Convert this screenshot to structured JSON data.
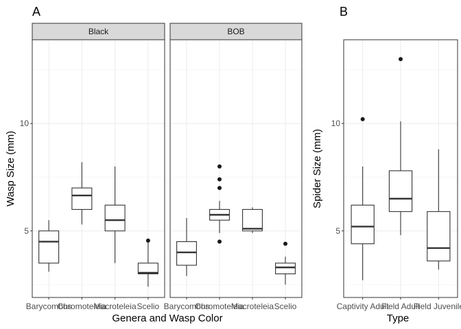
{
  "panels": [
    {
      "tag": "A"
    },
    {
      "tag": "B"
    }
  ],
  "chart_data": [
    {
      "type": "boxplot",
      "panel": "A",
      "xlabel": "Genera and Wasp Color",
      "ylabel": "Wasp Size (mm)",
      "ylim": [
        1.9,
        13.9
      ],
      "yticks": [
        5,
        10
      ],
      "grid": true,
      "facets": [
        {
          "label": "Black",
          "categories": [
            "Barycombus",
            "Chromoteleia",
            "Macroteleia",
            "Scelio"
          ],
          "boxes": [
            {
              "min": 3.1,
              "q1": 3.5,
              "median": 4.5,
              "q3": 5.0,
              "max": 5.5,
              "outliers": []
            },
            {
              "min": 5.3,
              "q1": 6.0,
              "median": 6.65,
              "q3": 7.0,
              "max": 8.2,
              "outliers": []
            },
            {
              "min": 3.5,
              "q1": 5.0,
              "median": 5.5,
              "q3": 6.2,
              "max": 8.0,
              "outliers": []
            },
            {
              "min": 2.4,
              "q1": 3.0,
              "median": 3.05,
              "q3": 3.5,
              "max": 4.5,
              "outliers": [
                4.55
              ]
            }
          ]
        },
        {
          "label": "BOB",
          "categories": [
            "Barycombus",
            "Chromoteleia",
            "Macroteleia",
            "Scelio"
          ],
          "boxes": [
            {
              "min": 2.9,
              "q1": 3.4,
              "median": 4.0,
              "q3": 4.5,
              "max": 5.6,
              "outliers": []
            },
            {
              "min": 4.9,
              "q1": 5.5,
              "median": 5.75,
              "q3": 6.0,
              "max": 6.4,
              "outliers": [
                8.0,
                7.4,
                7.0,
                4.5
              ]
            },
            {
              "min": 4.9,
              "q1": 5.0,
              "median": 5.1,
              "q3": 6.0,
              "max": 6.1,
              "outliers": []
            },
            {
              "min": 2.5,
              "q1": 3.0,
              "median": 3.3,
              "q3": 3.5,
              "max": 3.8,
              "outliers": [
                4.4
              ]
            }
          ]
        }
      ]
    },
    {
      "type": "boxplot",
      "panel": "B",
      "xlabel": "Type",
      "ylabel": "Spider Size (mm)",
      "ylim": [
        1.9,
        13.9
      ],
      "yticks": [
        5,
        10
      ],
      "grid": true,
      "categories": [
        "Captivity Adult",
        "Field Adult",
        "Field Juvenile"
      ],
      "boxes": [
        {
          "min": 2.7,
          "q1": 4.4,
          "median": 5.2,
          "q3": 6.2,
          "max": 8.0,
          "outliers": [
            10.2
          ]
        },
        {
          "min": 4.8,
          "q1": 5.9,
          "median": 6.5,
          "q3": 7.8,
          "max": 10.1,
          "outliers": [
            13.0
          ]
        },
        {
          "min": 3.2,
          "q1": 3.6,
          "median": 4.2,
          "q3": 5.9,
          "max": 8.8,
          "outliers": []
        }
      ]
    }
  ]
}
